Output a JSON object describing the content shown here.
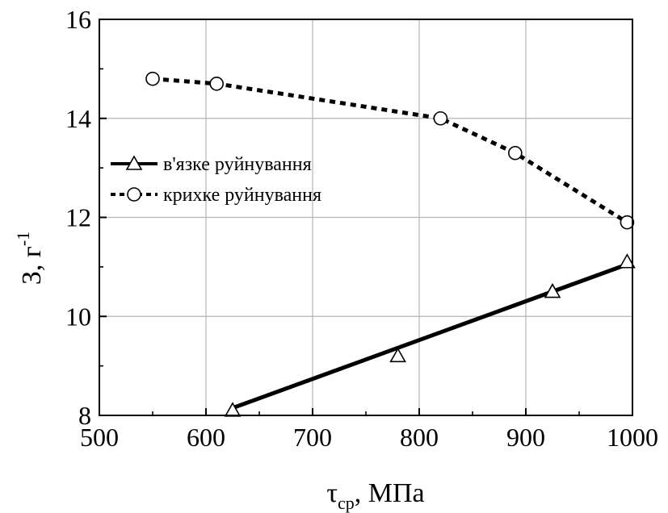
{
  "chart_data": {
    "type": "line",
    "title": "",
    "xlabel": {
      "symbol": "τ",
      "subscript": "ср",
      "unit": ", МПа"
    },
    "ylabel": {
      "main": "З, г",
      "superscript": "-1"
    },
    "xlim": [
      500,
      1000
    ],
    "ylim": [
      8,
      16
    ],
    "xticks": [
      "500",
      "600",
      "700",
      "800",
      "900",
      "1000"
    ],
    "yticks": [
      "8",
      "10",
      "12",
      "14",
      "16"
    ],
    "grid": true,
    "legend_position": "left-middle",
    "series": [
      {
        "name": "в'язке руйнування",
        "marker": "triangle",
        "line_style": "solid",
        "points": [
          [
            625,
            8.1
          ],
          [
            780,
            9.2
          ],
          [
            925,
            10.5
          ],
          [
            995,
            11.1
          ]
        ],
        "fit_line": [
          [
            625,
            8.15
          ],
          [
            995,
            11.05
          ]
        ]
      },
      {
        "name": "крихке руйнування",
        "marker": "circle",
        "line_style": "dotted",
        "points": [
          [
            550,
            14.8
          ],
          [
            610,
            14.7
          ],
          [
            820,
            14.0
          ],
          [
            890,
            13.3
          ],
          [
            995,
            11.9
          ]
        ],
        "fit_line": [
          [
            550,
            14.8
          ],
          [
            610,
            14.7
          ],
          [
            820,
            14.0
          ],
          [
            890,
            13.3
          ],
          [
            995,
            11.9
          ]
        ]
      }
    ]
  }
}
